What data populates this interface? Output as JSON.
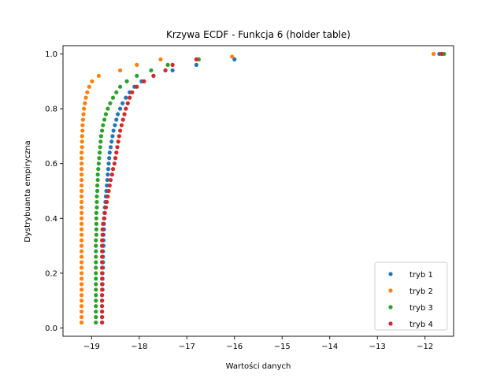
{
  "chart_data": {
    "type": "scatter",
    "title": "Krzywa ECDF - Funkcja 6 (holder table)",
    "xlabel": "Wartości danych",
    "ylabel": "Dystrybuanta empiryczna",
    "xlim": [
      -19.6,
      -11.4
    ],
    "ylim": [
      -0.03,
      1.03
    ],
    "x_ticks": [
      -19,
      -18,
      -17,
      -16,
      -15,
      -14,
      -13,
      -12
    ],
    "y_ticks": [
      0.0,
      0.2,
      0.4,
      0.6,
      0.8,
      1.0
    ],
    "x_tick_labels": [
      "−19",
      "−18",
      "−17",
      "−16",
      "−15",
      "−14",
      "−13",
      "−12"
    ],
    "y_tick_labels": [
      "0.0",
      "0.2",
      "0.4",
      "0.6",
      "0.8",
      "1.0"
    ],
    "grid": false,
    "legend_position": "bottom-right",
    "series": [
      {
        "name": "tryb 1",
        "color": "#1f77b4",
        "x": [
          -18.78,
          -18.78,
          -18.78,
          -18.78,
          -18.78,
          -18.78,
          -18.77,
          -18.77,
          -18.77,
          -18.77,
          -18.76,
          -18.76,
          -18.76,
          -18.76,
          -18.75,
          -18.75,
          -18.75,
          -18.74,
          -18.74,
          -18.73,
          -18.73,
          -18.72,
          -18.71,
          -18.7,
          -18.69,
          -18.68,
          -18.67,
          -18.66,
          -18.65,
          -18.64,
          -18.63,
          -18.62,
          -18.6,
          -18.58,
          -18.56,
          -18.54,
          -18.51,
          -18.48,
          -18.45,
          -18.4,
          -18.35,
          -18.28,
          -18.2,
          -18.1,
          -17.95,
          -17.7,
          -17.3,
          -16.8,
          -16.0,
          -11.7
        ],
        "y": [
          0.02,
          0.04,
          0.06,
          0.08,
          0.1,
          0.12,
          0.14,
          0.16,
          0.18,
          0.2,
          0.22,
          0.24,
          0.26,
          0.28,
          0.3,
          0.32,
          0.34,
          0.36,
          0.38,
          0.4,
          0.42,
          0.44,
          0.46,
          0.48,
          0.5,
          0.52,
          0.54,
          0.56,
          0.58,
          0.6,
          0.62,
          0.64,
          0.66,
          0.68,
          0.7,
          0.72,
          0.74,
          0.76,
          0.78,
          0.8,
          0.82,
          0.84,
          0.86,
          0.88,
          0.9,
          0.92,
          0.94,
          0.96,
          0.98,
          1.0
        ]
      },
      {
        "name": "tryb 2",
        "color": "#ff7f0e",
        "x": [
          -19.21,
          -19.21,
          -19.21,
          -19.21,
          -19.21,
          -19.21,
          -19.21,
          -19.21,
          -19.21,
          -19.21,
          -19.21,
          -19.21,
          -19.21,
          -19.21,
          -19.21,
          -19.21,
          -19.21,
          -19.21,
          -19.21,
          -19.21,
          -19.21,
          -19.21,
          -19.21,
          -19.21,
          -19.21,
          -19.21,
          -19.21,
          -19.21,
          -19.21,
          -19.21,
          -19.21,
          -19.21,
          -19.2,
          -19.2,
          -19.2,
          -19.19,
          -19.19,
          -19.18,
          -19.17,
          -19.16,
          -19.14,
          -19.12,
          -19.09,
          -19.05,
          -18.99,
          -18.85,
          -18.4,
          -18.05,
          -17.55,
          -16.05,
          -11.82
        ],
        "y": [
          0.02,
          0.04,
          0.06,
          0.08,
          0.1,
          0.12,
          0.14,
          0.16,
          0.18,
          0.2,
          0.22,
          0.24,
          0.26,
          0.28,
          0.3,
          0.32,
          0.34,
          0.36,
          0.38,
          0.4,
          0.42,
          0.44,
          0.46,
          0.48,
          0.5,
          0.52,
          0.54,
          0.56,
          0.58,
          0.6,
          0.62,
          0.64,
          0.66,
          0.68,
          0.7,
          0.72,
          0.74,
          0.76,
          0.78,
          0.8,
          0.82,
          0.84,
          0.86,
          0.88,
          0.9,
          0.92,
          0.94,
          0.96,
          0.98,
          0.99,
          1.0
        ]
      },
      {
        "name": "tryb 3",
        "color": "#2ca02c",
        "x": [
          -18.91,
          -18.91,
          -18.91,
          -18.91,
          -18.91,
          -18.91,
          -18.91,
          -18.91,
          -18.91,
          -18.91,
          -18.91,
          -18.91,
          -18.91,
          -18.91,
          -18.91,
          -18.91,
          -18.9,
          -18.9,
          -18.9,
          -18.9,
          -18.9,
          -18.89,
          -18.89,
          -18.89,
          -18.88,
          -18.88,
          -18.87,
          -18.87,
          -18.86,
          -18.85,
          -18.84,
          -18.83,
          -18.82,
          -18.81,
          -18.8,
          -18.78,
          -18.76,
          -18.73,
          -18.7,
          -18.66,
          -18.61,
          -18.55,
          -18.48,
          -18.4,
          -18.26,
          -18.05,
          -17.75,
          -17.4,
          -16.75,
          -11.6
        ],
        "y": [
          0.02,
          0.04,
          0.06,
          0.08,
          0.1,
          0.12,
          0.14,
          0.16,
          0.18,
          0.2,
          0.22,
          0.24,
          0.26,
          0.28,
          0.3,
          0.32,
          0.34,
          0.36,
          0.38,
          0.4,
          0.42,
          0.44,
          0.46,
          0.48,
          0.5,
          0.52,
          0.54,
          0.56,
          0.58,
          0.6,
          0.62,
          0.64,
          0.66,
          0.68,
          0.7,
          0.72,
          0.74,
          0.76,
          0.78,
          0.8,
          0.82,
          0.84,
          0.86,
          0.88,
          0.9,
          0.92,
          0.94,
          0.96,
          0.98,
          1.0
        ]
      },
      {
        "name": "tryb 4",
        "color": "#d62728",
        "x": [
          -18.78,
          -18.78,
          -18.78,
          -18.78,
          -18.78,
          -18.78,
          -18.78,
          -18.78,
          -18.78,
          -18.78,
          -18.78,
          -18.78,
          -18.78,
          -18.78,
          -18.78,
          -18.78,
          -18.77,
          -18.77,
          -18.76,
          -18.74,
          -18.72,
          -18.7,
          -18.68,
          -18.66,
          -18.64,
          -18.62,
          -18.6,
          -18.57,
          -18.55,
          -18.52,
          -18.5,
          -18.48,
          -18.46,
          -18.44,
          -18.42,
          -18.4,
          -18.37,
          -18.34,
          -18.31,
          -18.28,
          -18.24,
          -18.2,
          -18.15,
          -18.05,
          -17.9,
          -17.7,
          -17.45,
          -17.3,
          -16.8,
          -11.65
        ],
        "y": [
          0.02,
          0.04,
          0.06,
          0.08,
          0.1,
          0.12,
          0.14,
          0.16,
          0.18,
          0.2,
          0.22,
          0.24,
          0.26,
          0.28,
          0.3,
          0.32,
          0.34,
          0.36,
          0.38,
          0.4,
          0.42,
          0.44,
          0.46,
          0.48,
          0.5,
          0.52,
          0.54,
          0.56,
          0.58,
          0.6,
          0.62,
          0.64,
          0.66,
          0.68,
          0.7,
          0.72,
          0.74,
          0.76,
          0.78,
          0.8,
          0.82,
          0.84,
          0.86,
          0.88,
          0.9,
          0.92,
          0.94,
          0.96,
          0.98,
          1.0
        ]
      }
    ]
  }
}
